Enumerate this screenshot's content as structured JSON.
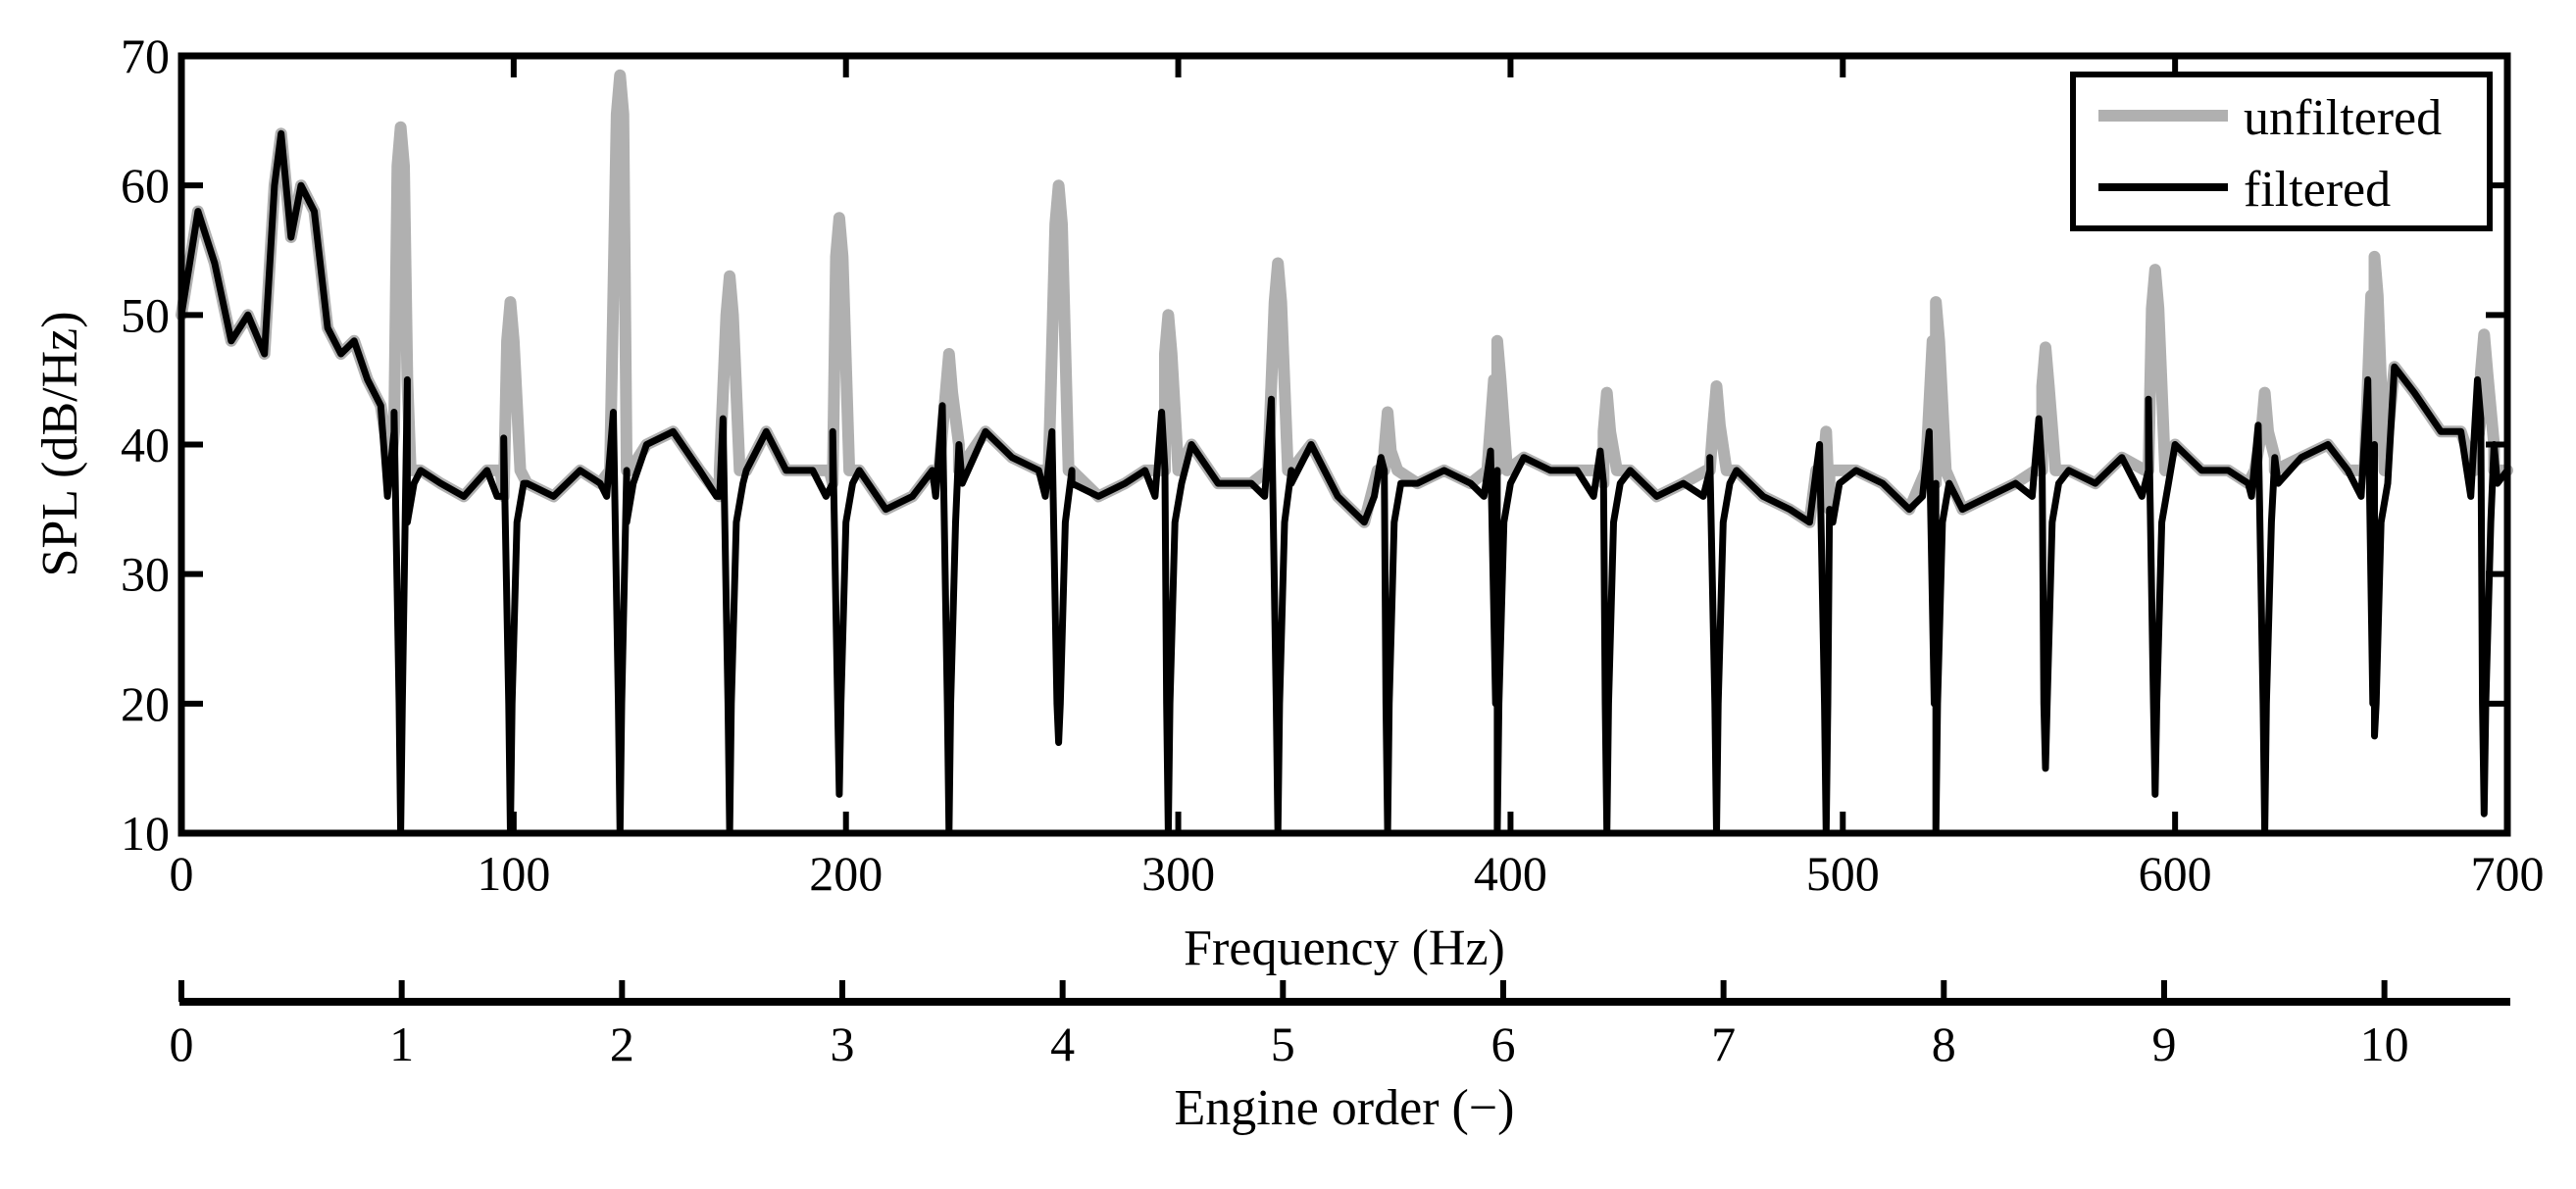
{
  "chart_data": {
    "type": "line",
    "xlabel": "Frequency (Hz)",
    "ylabel": "SPL (dB/Hz)",
    "xlim": [
      0,
      700
    ],
    "ylim": [
      10,
      70
    ],
    "xticks": [
      "0",
      "100",
      "200",
      "300",
      "400",
      "500",
      "600",
      "700"
    ],
    "yticks": [
      "10",
      "20",
      "30",
      "40",
      "50",
      "60",
      "70"
    ],
    "grid": false,
    "legend_position": "top-right",
    "secondary_axis": {
      "label": "Engine order (−)",
      "ticks": [
        "0",
        "1",
        "2",
        "3",
        "4",
        "5",
        "6",
        "7",
        "8",
        "9",
        "10"
      ],
      "hz_per_order": 66.3
    },
    "peak_freqs": [
      66,
      99,
      132,
      165,
      198,
      231,
      264,
      297,
      330,
      363,
      396,
      429,
      462,
      495,
      528,
      561,
      594,
      627,
      660,
      693
    ],
    "series": [
      {
        "name": "unfiltered",
        "color": "#b0b0b0",
        "points": [
          [
            0,
            50
          ],
          [
            5,
            58
          ],
          [
            10,
            54
          ],
          [
            15,
            48
          ],
          [
            20,
            50
          ],
          [
            25,
            47
          ],
          [
            28,
            60
          ],
          [
            30,
            64
          ],
          [
            33,
            56
          ],
          [
            36,
            60
          ],
          [
            40,
            58
          ],
          [
            44,
            49
          ],
          [
            48,
            47
          ],
          [
            52,
            48
          ],
          [
            56,
            45
          ],
          [
            60,
            43
          ],
          [
            64,
            41
          ],
          [
            68,
            45
          ],
          [
            72,
            38
          ],
          [
            78,
            37
          ],
          [
            85,
            36
          ],
          [
            92,
            38
          ],
          [
            97,
            36
          ],
          [
            104,
            37
          ],
          [
            112,
            36
          ],
          [
            120,
            38
          ],
          [
            126,
            37
          ],
          [
            134,
            38
          ],
          [
            140,
            40
          ],
          [
            148,
            41
          ],
          [
            156,
            38
          ],
          [
            162,
            36
          ],
          [
            170,
            38
          ],
          [
            176,
            41
          ],
          [
            182,
            38
          ],
          [
            190,
            38
          ],
          [
            196,
            37
          ],
          [
            204,
            38
          ],
          [
            212,
            35
          ],
          [
            220,
            36
          ],
          [
            226,
            38
          ],
          [
            234,
            40
          ],
          [
            242,
            41
          ],
          [
            250,
            39
          ],
          [
            258,
            38
          ],
          [
            268,
            38
          ],
          [
            276,
            36
          ],
          [
            284,
            37
          ],
          [
            290,
            38
          ],
          [
            296,
            38
          ],
          [
            304,
            40
          ],
          [
            312,
            37
          ],
          [
            322,
            37
          ],
          [
            334,
            38
          ],
          [
            340,
            40
          ],
          [
            348,
            36
          ],
          [
            356,
            34
          ],
          [
            362,
            38
          ],
          [
            372,
            37
          ],
          [
            380,
            38
          ],
          [
            388,
            37
          ],
          [
            396,
            38
          ],
          [
            404,
            39
          ],
          [
            412,
            38
          ],
          [
            420,
            38
          ],
          [
            428,
            37
          ],
          [
            436,
            38
          ],
          [
            444,
            36
          ],
          [
            452,
            37
          ],
          [
            460,
            38
          ],
          [
            468,
            38
          ],
          [
            476,
            36
          ],
          [
            484,
            35
          ],
          [
            490,
            34
          ],
          [
            496,
            35
          ],
          [
            504,
            38
          ],
          [
            512,
            37
          ],
          [
            520,
            35
          ],
          [
            528,
            37
          ],
          [
            536,
            35
          ],
          [
            544,
            36
          ],
          [
            552,
            37
          ],
          [
            560,
            38
          ],
          [
            568,
            38
          ],
          [
            576,
            37
          ],
          [
            584,
            39
          ],
          [
            592,
            38
          ],
          [
            600,
            40
          ],
          [
            608,
            38
          ],
          [
            616,
            38
          ],
          [
            622,
            37
          ],
          [
            630,
            39
          ],
          [
            638,
            39
          ],
          [
            646,
            40
          ],
          [
            652,
            38
          ],
          [
            660,
            40
          ],
          [
            666,
            46
          ],
          [
            672,
            44
          ],
          [
            680,
            41
          ],
          [
            686,
            41
          ],
          [
            692,
            42
          ],
          [
            696,
            40
          ],
          [
            700,
            38
          ]
        ]
      },
      {
        "name": "filtered",
        "color": "#000000",
        "points": [
          [
            0,
            50
          ],
          [
            5,
            58
          ],
          [
            10,
            54
          ],
          [
            15,
            48
          ],
          [
            20,
            50
          ],
          [
            25,
            47
          ],
          [
            28,
            60
          ],
          [
            30,
            64
          ],
          [
            33,
            56
          ],
          [
            36,
            60
          ],
          [
            40,
            58
          ],
          [
            44,
            49
          ],
          [
            48,
            47
          ],
          [
            52,
            48
          ],
          [
            56,
            45
          ],
          [
            60,
            43
          ],
          [
            64,
            41
          ],
          [
            68,
            45
          ],
          [
            72,
            38
          ],
          [
            78,
            37
          ],
          [
            85,
            36
          ],
          [
            92,
            38
          ],
          [
            97,
            36
          ],
          [
            104,
            37
          ],
          [
            112,
            36
          ],
          [
            120,
            38
          ],
          [
            126,
            37
          ],
          [
            134,
            38
          ],
          [
            140,
            40
          ],
          [
            148,
            41
          ],
          [
            156,
            38
          ],
          [
            162,
            36
          ],
          [
            170,
            38
          ],
          [
            176,
            41
          ],
          [
            182,
            38
          ],
          [
            190,
            38
          ],
          [
            196,
            37
          ],
          [
            204,
            38
          ],
          [
            212,
            35
          ],
          [
            220,
            36
          ],
          [
            226,
            38
          ],
          [
            234,
            40
          ],
          [
            242,
            41
          ],
          [
            250,
            39
          ],
          [
            258,
            38
          ],
          [
            268,
            38
          ],
          [
            276,
            36
          ],
          [
            284,
            37
          ],
          [
            290,
            38
          ],
          [
            296,
            38
          ],
          [
            304,
            40
          ],
          [
            312,
            37
          ],
          [
            322,
            37
          ],
          [
            334,
            38
          ],
          [
            340,
            40
          ],
          [
            348,
            36
          ],
          [
            356,
            34
          ],
          [
            362,
            38
          ],
          [
            372,
            37
          ],
          [
            380,
            38
          ],
          [
            388,
            37
          ],
          [
            396,
            38
          ],
          [
            404,
            39
          ],
          [
            412,
            38
          ],
          [
            420,
            38
          ],
          [
            428,
            37
          ],
          [
            436,
            38
          ],
          [
            444,
            36
          ],
          [
            452,
            37
          ],
          [
            460,
            38
          ],
          [
            468,
            38
          ],
          [
            476,
            36
          ],
          [
            484,
            35
          ],
          [
            490,
            34
          ],
          [
            496,
            35
          ],
          [
            504,
            38
          ],
          [
            512,
            37
          ],
          [
            520,
            35
          ],
          [
            528,
            37
          ],
          [
            536,
            35
          ],
          [
            544,
            36
          ],
          [
            552,
            37
          ],
          [
            560,
            38
          ],
          [
            568,
            38
          ],
          [
            576,
            37
          ],
          [
            584,
            39
          ],
          [
            592,
            38
          ],
          [
            600,
            40
          ],
          [
            608,
            38
          ],
          [
            616,
            38
          ],
          [
            622,
            37
          ],
          [
            630,
            39
          ],
          [
            638,
            39
          ],
          [
            646,
            40
          ],
          [
            652,
            38
          ],
          [
            660,
            40
          ],
          [
            666,
            46
          ],
          [
            672,
            44
          ],
          [
            680,
            41
          ],
          [
            686,
            41
          ],
          [
            692,
            42
          ],
          [
            696,
            40
          ],
          [
            700,
            38
          ]
        ]
      }
    ],
    "unfiltered_peak_heights": [
      64.5,
      51,
      68.5,
      53,
      57.5,
      47,
      60,
      50,
      54,
      42.5,
      48,
      44,
      44.5,
      41,
      51,
      47.5,
      53.5,
      44,
      54.5,
      48.5
    ],
    "filtered_notch_depths": [
      10,
      10,
      10,
      10,
      13,
      10,
      17,
      10,
      10,
      10,
      10,
      10,
      10,
      10,
      10,
      15,
      13,
      10,
      17.5,
      11.5
    ],
    "filtered_notch_shoulders": [
      42.5,
      40.5,
      42.5,
      42,
      41,
      43,
      41,
      42.5,
      43.5,
      39,
      39.5,
      39.5,
      39,
      40,
      41,
      42,
      43.5,
      41.5,
      45,
      45
    ]
  }
}
